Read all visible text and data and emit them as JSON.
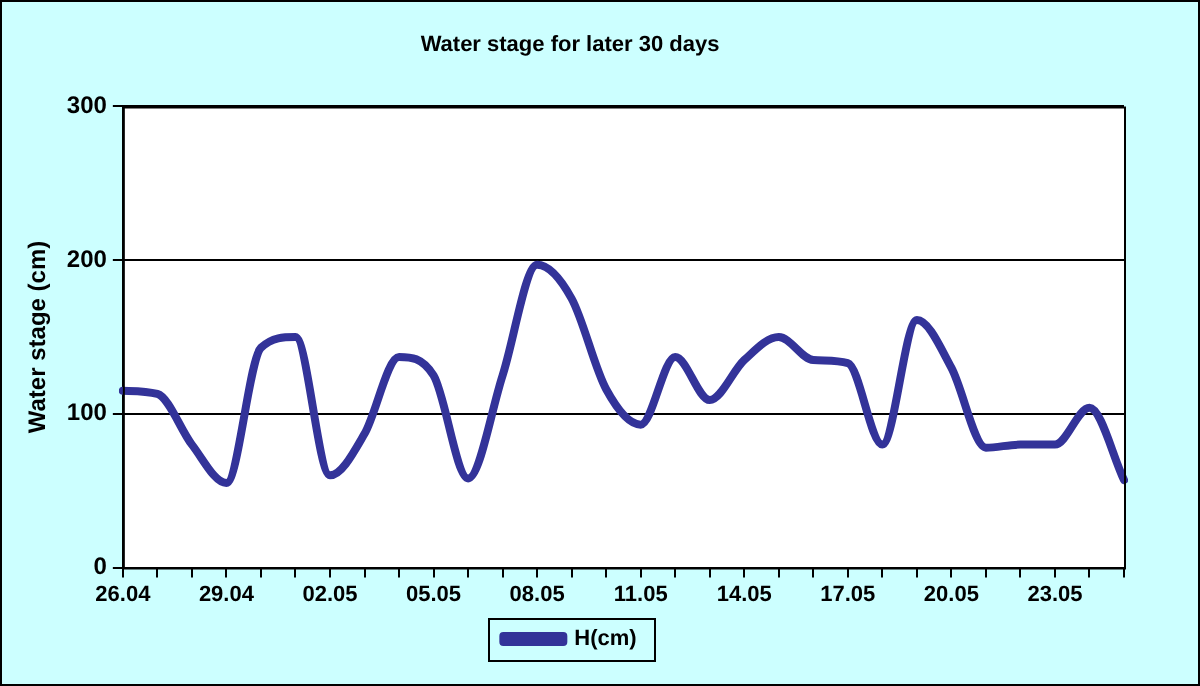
{
  "chart_data": {
    "type": "line",
    "title": "Water stage for later 30 days",
    "ylabel": "Water stage (cm)",
    "categories": [
      "26.04",
      null,
      null,
      "29.04",
      null,
      null,
      "02.05",
      null,
      null,
      "05.05",
      null,
      null,
      "08.05",
      null,
      null,
      "11.05",
      null,
      null,
      "14.05",
      null,
      null,
      "17.05",
      null,
      null,
      "20.05",
      null,
      null,
      "23.05",
      null,
      null
    ],
    "series": [
      {
        "name": "H(cm)",
        "color": "#333399",
        "values": [
          115,
          113,
          80,
          55,
          143,
          150,
          60,
          87,
          137,
          125,
          58,
          125,
          197,
          175,
          116,
          93,
          137,
          109,
          135,
          150,
          135,
          133,
          80,
          161,
          130,
          78,
          80,
          80,
          104,
          57
        ]
      }
    ],
    "ylim": [
      0,
      300
    ],
    "yticks": [
      0,
      100,
      200,
      300
    ],
    "grid": "y",
    "legend": "bottom",
    "marker": "none",
    "line_style": "solid"
  }
}
